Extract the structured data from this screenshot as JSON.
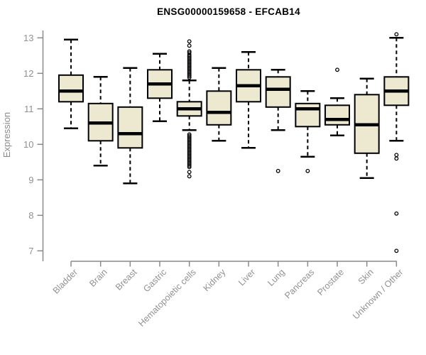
{
  "title": "ENSG00000159658 - EFCAB14",
  "chart_data": {
    "type": "boxplot",
    "title": "ENSG00000159658 - EFCAB14",
    "xlabel": "",
    "ylabel": "Expression",
    "ylim": [
      7,
      13.2
    ],
    "yticks": [
      7,
      8,
      9,
      10,
      11,
      12,
      13
    ],
    "grid": false,
    "categories": [
      "Bladder",
      "Brain",
      "Breast",
      "Gastric",
      "Hematopoietic cells",
      "Kidney",
      "Liver",
      "Lung",
      "Pancreas",
      "Prostate",
      "Skin",
      "Unknown / Other"
    ],
    "series": [
      {
        "name": "Bladder",
        "low": 10.45,
        "q1": 11.2,
        "median": 11.5,
        "q3": 11.95,
        "high": 12.95,
        "outliers": []
      },
      {
        "name": "Brain",
        "low": 9.4,
        "q1": 10.1,
        "median": 10.6,
        "q3": 11.15,
        "high": 11.9,
        "outliers": []
      },
      {
        "name": "Breast",
        "low": 8.9,
        "q1": 9.9,
        "median": 10.3,
        "q3": 11.05,
        "high": 12.15,
        "outliers": []
      },
      {
        "name": "Gastric",
        "low": 10.65,
        "q1": 11.3,
        "median": 11.7,
        "q3": 12.1,
        "high": 12.55,
        "outliers": []
      },
      {
        "name": "Hematopoietic cells",
        "low": 10.4,
        "q1": 10.8,
        "median": 11.0,
        "q3": 11.2,
        "high": 11.8,
        "outliers": [
          12.9,
          12.78,
          12.62,
          12.58,
          12.52,
          12.48,
          12.44,
          12.4,
          12.36,
          12.32,
          12.28,
          12.24,
          12.2,
          12.16,
          12.12,
          12.08,
          12.04,
          12.0,
          11.96,
          11.92,
          11.88,
          10.28,
          10.24,
          10.2,
          10.16,
          10.12,
          10.08,
          10.04,
          10.0,
          9.96,
          9.92,
          9.88,
          9.84,
          9.8,
          9.76,
          9.72,
          9.68,
          9.64,
          9.6,
          9.56,
          9.52,
          9.48,
          9.44,
          9.4,
          9.36,
          9.22,
          9.1
        ]
      },
      {
        "name": "Kidney",
        "low": 10.1,
        "q1": 10.55,
        "median": 10.9,
        "q3": 11.5,
        "high": 12.15,
        "outliers": []
      },
      {
        "name": "Liver",
        "low": 9.9,
        "q1": 11.2,
        "median": 11.65,
        "q3": 12.1,
        "high": 12.6,
        "outliers": []
      },
      {
        "name": "Lung",
        "low": 10.4,
        "q1": 11.05,
        "median": 11.55,
        "q3": 11.9,
        "high": 12.1,
        "outliers": [
          9.25
        ]
      },
      {
        "name": "Pancreas",
        "low": 9.65,
        "q1": 10.5,
        "median": 11.0,
        "q3": 11.15,
        "high": 11.5,
        "outliers": [
          9.25
        ]
      },
      {
        "name": "Prostate",
        "low": 10.25,
        "q1": 10.55,
        "median": 10.7,
        "q3": 11.1,
        "high": 11.3,
        "outliers": [
          12.1
        ]
      },
      {
        "name": "Skin",
        "low": 9.05,
        "q1": 9.75,
        "median": 10.55,
        "q3": 11.4,
        "high": 11.85,
        "outliers": []
      },
      {
        "name": "Unknown / Other",
        "low": 10.1,
        "q1": 11.1,
        "median": 11.5,
        "q3": 11.9,
        "high": 13.0,
        "outliers": [
          13.1,
          9.7,
          9.6,
          8.05,
          7.0
        ]
      }
    ],
    "colors": {
      "box_fill": "#EDE8D0",
      "box_stroke": "#000000",
      "median": "#000000",
      "whisker": "#000000",
      "axis": "#8a8a8a",
      "tick_label": "#919191",
      "title": "#000000"
    }
  }
}
